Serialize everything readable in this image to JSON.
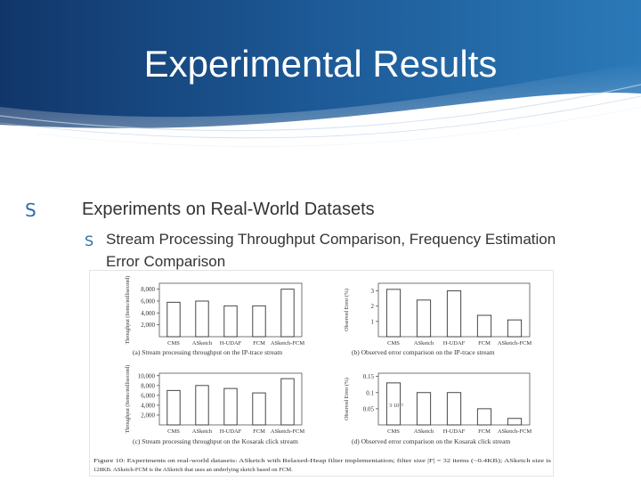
{
  "slide": {
    "title": "Experimental  Results",
    "bullet1": "Experiments on Real-World Datasets",
    "bullet2": "Stream Processing Throughput Comparison, Frequency Estimation Error Comparison",
    "bullet_glyph": "S"
  },
  "figure": {
    "caption_line1": "Figure 10: Experiments on real-world datasets: ASketch with Relaxed-Heap filter implementation; filter size |F| = 32 items (~0.4KB); ASketch size is",
    "caption_line2": "128KB. ASketch-FCM is the ASketch that uses an underlying sketch based on FCM."
  },
  "chart_data": [
    {
      "type": "bar",
      "caption": "(a) Stream processing throughput on the IP-trace stream",
      "ylabel": "Throughput (Items/millisecond)",
      "categories": [
        "CMS",
        "ASketch",
        "H-UDAF",
        "FCM",
        "ASketch-FCM"
      ],
      "values": [
        5800,
        6000,
        5200,
        5200,
        8000
      ],
      "yticks": [
        "2,000",
        "4,000",
        "6,000",
        "8,000"
      ],
      "ylim": [
        0,
        9000
      ]
    },
    {
      "type": "bar",
      "caption": "(b) Observed error comparison on the IP-trace stream",
      "ylabel": "Observed Error (%)",
      "categories": [
        "CMS",
        "ASketch",
        "H-UDAF",
        "FCM",
        "ASketch-FCM"
      ],
      "values": [
        3.1,
        2.4,
        3.0,
        1.4,
        1.1
      ],
      "yticks": [
        "1",
        "2",
        "3"
      ],
      "ylim": [
        0,
        3.5
      ]
    },
    {
      "type": "bar",
      "caption": "(c) Stream processing throughput on the Kosarak click stream",
      "ylabel": "Throughput (Items/millisecond)",
      "categories": [
        "CMS",
        "ASketch",
        "H-UDAF",
        "FCM",
        "ASketch-FCM"
      ],
      "values": [
        7000,
        8000,
        7400,
        6500,
        9400
      ],
      "yticks": [
        "2,000",
        "4,000",
        "6,000",
        "8,000",
        "10,000"
      ],
      "ylim": [
        0,
        10500
      ]
    },
    {
      "type": "bar",
      "caption": "(d) Observed error comparison on the Kosarak click stream",
      "ylabel": "Observed Error (%)",
      "categories": [
        "CMS",
        "ASketch",
        "H-UDAF",
        "FCM",
        "ASketch-FCM"
      ],
      "values": [
        0.13,
        0.1,
        0.1,
        0.05,
        0.02
      ],
      "yticks": [
        "0.05",
        "0.1",
        "0.15"
      ],
      "ylim": [
        0,
        0.16
      ],
      "annotation": "3·10⁻²"
    }
  ]
}
